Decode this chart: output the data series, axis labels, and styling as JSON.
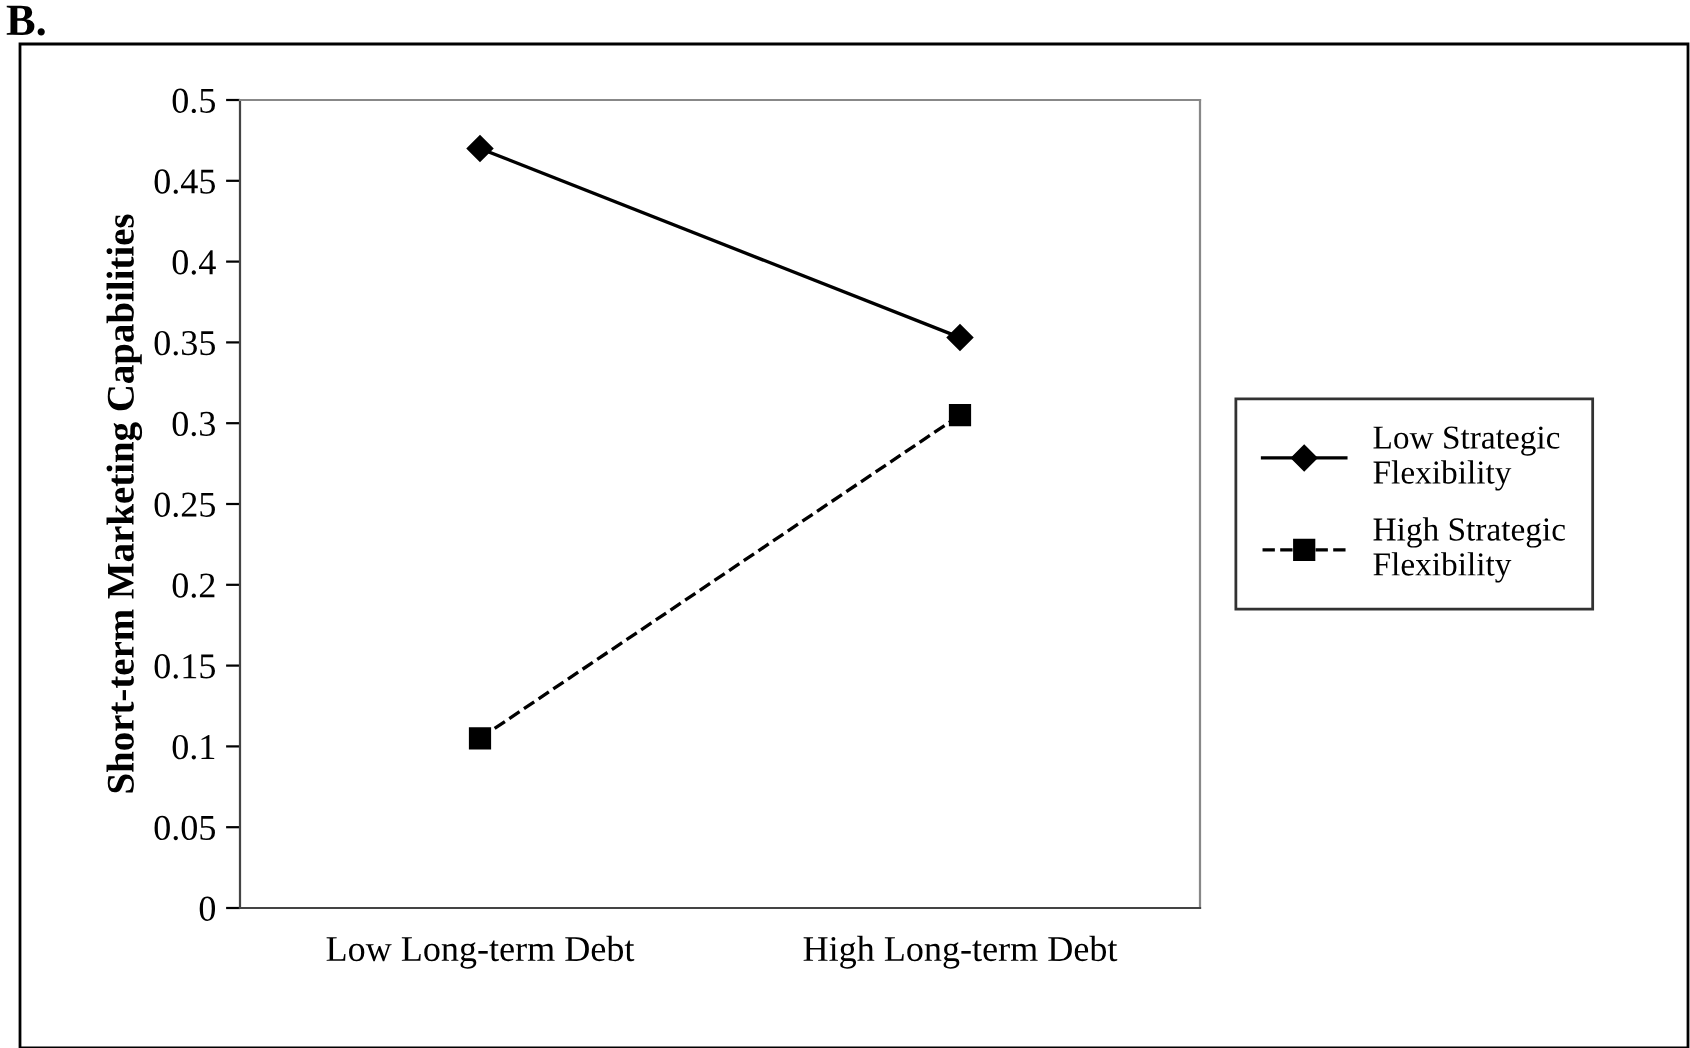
{
  "chart_data": {
    "type": "line",
    "title": "B.",
    "ylabel": "Short-term Marketing Capabilities",
    "categories": [
      "Low Long-term Debt",
      "High Long-term Debt"
    ],
    "series": [
      {
        "name": "Low Strategic\nFlexibility",
        "color": "#000000",
        "values": [
          0.47,
          0.353
        ],
        "marker": "diamond",
        "line_style": "solid"
      },
      {
        "name": "High Strategic\nFlexibility",
        "color": "#000000",
        "values": [
          0.105,
          0.305
        ],
        "marker": "square",
        "line_style": "dashed"
      }
    ],
    "ylim": [
      0,
      0.5
    ],
    "yticks": [
      0,
      0.05,
      0.1,
      0.15,
      0.2,
      0.25,
      0.3,
      0.35,
      0.4,
      0.45,
      0.5
    ],
    "grid": false,
    "legend": "right"
  }
}
